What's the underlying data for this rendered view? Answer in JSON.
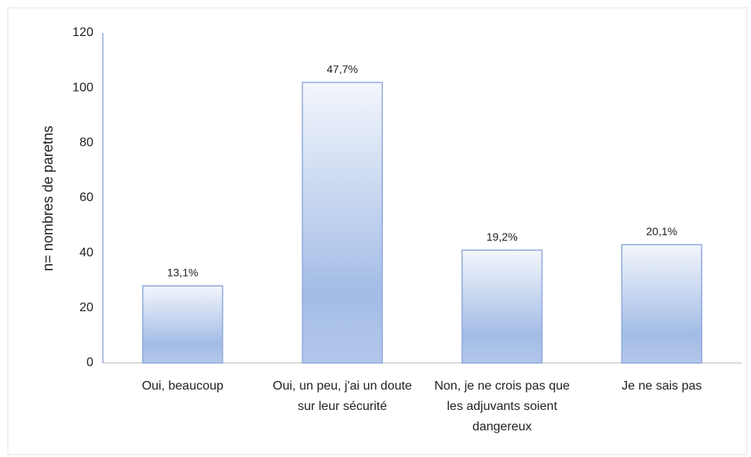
{
  "chart_data": {
    "type": "bar",
    "y_label": "n= nombres de paretns",
    "categories": [
      "Oui, beaucoup",
      "Oui, un peu, j'ai un doute sur leur sécurité",
      "Non, je ne crois pas que les adjuvants soient dangereux",
      "Je ne sais pas"
    ],
    "values": [
      28,
      102,
      41,
      43
    ],
    "annotations": [
      "13,1%",
      "47,7%",
      "19,2%",
      "20,1%"
    ],
    "color": "#8faadc",
    "ylim": [
      0,
      120
    ],
    "yticks": [
      0,
      20,
      40,
      60,
      80,
      100,
      120
    ],
    "grid": false
  }
}
